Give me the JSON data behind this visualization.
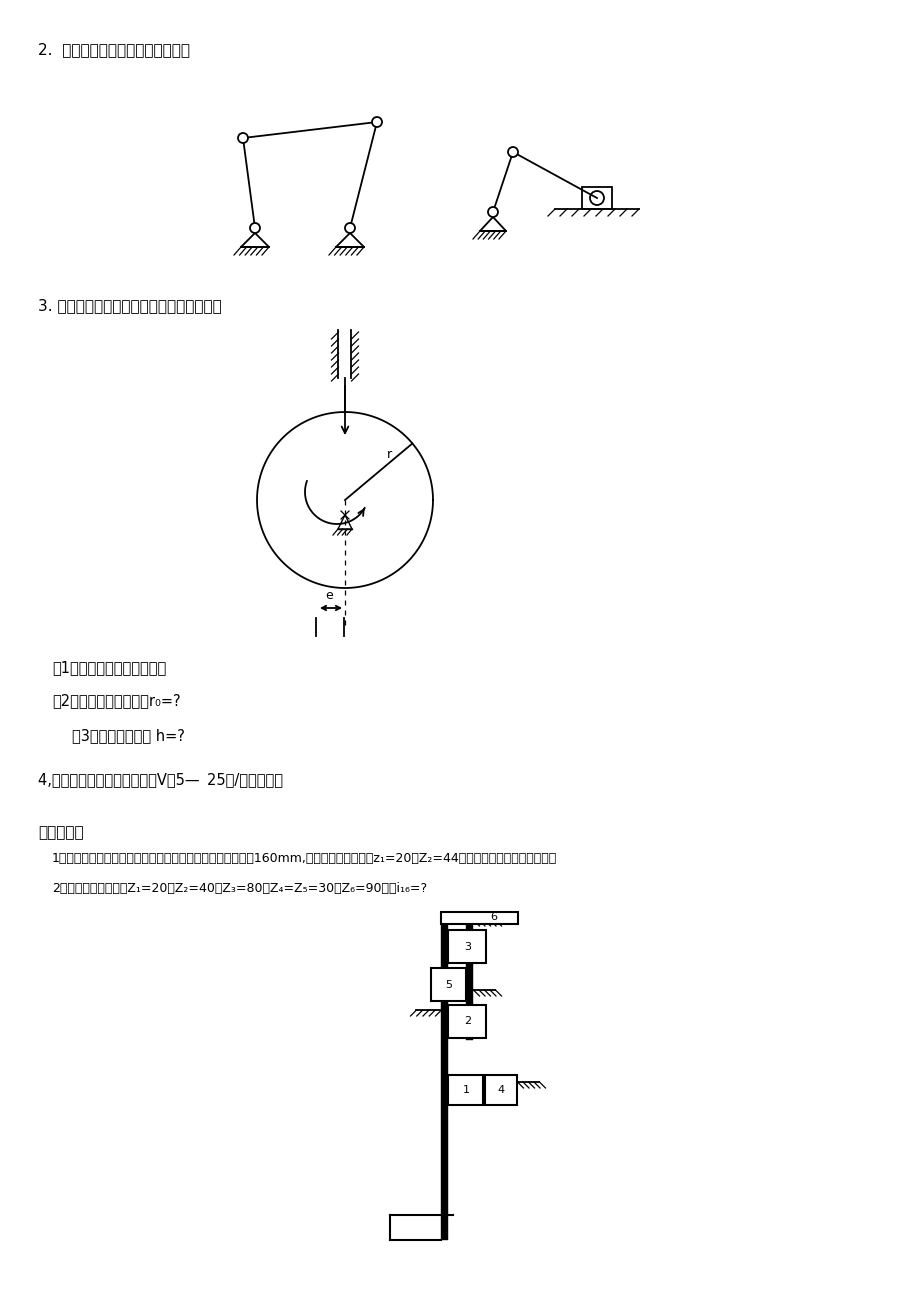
{
  "bg_color": "#ffffff",
  "text_color": "#000000",
  "line_color": "#000000",
  "q2_text": "2.  作下列机构图示位置的压力角。",
  "q3_text": "3. 图示尖顶对心移动从动杆盘状凸轮机构。",
  "q3_sub1": "（1）作出图示位置压力角；",
  "q3_sub2": "（2）求该凸轮基圆半径r₀=?",
  "q3_sub3": "（3）求从动杆升程 h=?",
  "q4_text": "4,简述带传动为什么限制带速V在5— 25米/秒范围内？",
  "section3_text": "三、计算题",
  "calc1_text": "1、一对外噜合齿轮标准直齿圆柱齿轮传动，测得其中心距为160mm,两齿轮的齿数分别为z₁=20，Z₂=44，求两齿轮的主要几何尺寸。",
  "calc2_text": "2、图示轮系，已知：Z₁=20，Z₂=40，Z₃=80，Z₄=Z₅=30，Z₆=90，求i₁₆=?"
}
